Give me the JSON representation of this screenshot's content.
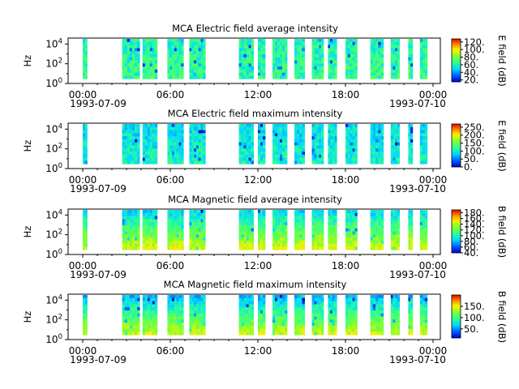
{
  "chart_data": [
    {
      "type": "heatmap",
      "title": "MCA  Electric field average intensity",
      "ylabel": "Hz",
      "y_scale": "log",
      "ylim": [
        1,
        40000
      ],
      "y_ticks": [
        {
          "base": "10",
          "exp": "0",
          "v": 1
        },
        {
          "base": "10",
          "exp": "2",
          "v": 100
        },
        {
          "base": "10",
          "exp": "4",
          "v": 10000
        }
      ],
      "x_ticks": [
        "00:00",
        "06:00",
        "12:00",
        "18:00",
        "00:00"
      ],
      "x_dates": [
        "1993-07-09",
        "1993-07-10"
      ],
      "xlim_hours": [
        -1,
        24.5
      ],
      "colorbar_label": "E field (dB)",
      "colorbar_ticks": [
        "120.",
        "100.",
        "80.",
        "60.",
        "40.",
        "20."
      ],
      "colorbar_range": [
        15,
        128
      ],
      "colorscale": "rainbow",
      "data_segments_hours": [
        [
          0.0,
          0.3
        ],
        [
          2.7,
          3.9
        ],
        [
          4.1,
          5.1
        ],
        [
          5.8,
          6.9
        ],
        [
          7.3,
          8.4
        ],
        [
          10.7,
          11.7
        ],
        [
          12.0,
          12.5
        ],
        [
          13.0,
          14.0
        ],
        [
          14.5,
          15.2
        ],
        [
          15.7,
          16.5
        ],
        [
          16.8,
          17.4
        ],
        [
          18.0,
          18.8
        ],
        [
          19.7,
          20.6
        ],
        [
          21.1,
          21.7
        ],
        [
          22.3,
          22.6
        ],
        [
          23.1,
          23.6
        ]
      ],
      "note_data": "time-frequency intensity spectrogram"
    },
    {
      "type": "heatmap",
      "title": "MCA  Electric field maximum intensity",
      "ylabel": "Hz",
      "y_scale": "log",
      "ylim": [
        1,
        40000
      ],
      "y_ticks": [
        {
          "base": "10",
          "exp": "0",
          "v": 1
        },
        {
          "base": "10",
          "exp": "2",
          "v": 100
        },
        {
          "base": "10",
          "exp": "4",
          "v": 10000
        }
      ],
      "x_ticks": [
        "00:00",
        "06:00",
        "12:00",
        "18:00",
        "00:00"
      ],
      "x_dates": [
        "1993-07-09",
        "1993-07-10"
      ],
      "xlim_hours": [
        -1,
        24.5
      ],
      "colorbar_label": "E field (dB)",
      "colorbar_ticks": [
        "250.",
        "200.",
        "150.",
        "100.",
        "50.",
        "0."
      ],
      "colorbar_range": [
        0,
        270
      ],
      "colorscale": "rainbow",
      "data_segments_hours": [
        [
          0.0,
          0.3
        ],
        [
          2.7,
          3.9
        ],
        [
          4.1,
          5.1
        ],
        [
          5.8,
          6.9
        ],
        [
          7.3,
          8.4
        ],
        [
          10.7,
          11.7
        ],
        [
          12.0,
          12.5
        ],
        [
          13.0,
          14.0
        ],
        [
          14.5,
          15.2
        ],
        [
          15.7,
          16.5
        ],
        [
          16.8,
          17.4
        ],
        [
          18.0,
          18.8
        ],
        [
          19.7,
          20.6
        ],
        [
          21.1,
          21.7
        ],
        [
          22.3,
          22.6
        ],
        [
          23.1,
          23.6
        ]
      ]
    },
    {
      "type": "heatmap",
      "title": "MCA  Magnetic field average intensity",
      "ylabel": "Hz",
      "y_scale": "log",
      "ylim": [
        1,
        40000
      ],
      "y_ticks": [
        {
          "base": "10",
          "exp": "0",
          "v": 1
        },
        {
          "base": "10",
          "exp": "2",
          "v": 100
        },
        {
          "base": "10",
          "exp": "4",
          "v": 10000
        }
      ],
      "x_ticks": [
        "00:00",
        "06:00",
        "12:00",
        "18:00",
        "00:00"
      ],
      "x_dates": [
        "1993-07-09",
        "1993-07-10"
      ],
      "xlim_hours": [
        -1,
        24.5
      ],
      "colorbar_label": "B field (dB)",
      "colorbar_ticks": [
        "180.",
        "160.",
        "140.",
        "120.",
        "100.",
        "80.",
        "60.",
        "40."
      ],
      "colorbar_range": [
        40,
        190
      ],
      "colorscale": "rainbow",
      "data_segments_hours": [
        [
          0.0,
          0.3
        ],
        [
          2.7,
          3.9
        ],
        [
          4.1,
          5.1
        ],
        [
          5.8,
          6.9
        ],
        [
          7.3,
          8.4
        ],
        [
          10.7,
          11.7
        ],
        [
          12.0,
          12.5
        ],
        [
          13.0,
          14.0
        ],
        [
          14.5,
          15.2
        ],
        [
          15.7,
          16.5
        ],
        [
          16.8,
          17.4
        ],
        [
          18.0,
          18.8
        ],
        [
          19.7,
          20.6
        ],
        [
          21.1,
          21.7
        ],
        [
          22.3,
          22.6
        ],
        [
          23.1,
          23.6
        ]
      ]
    },
    {
      "type": "heatmap",
      "title": "MCA  Magnetic field maximum intensity",
      "ylabel": "Hz",
      "y_scale": "log",
      "ylim": [
        1,
        40000
      ],
      "y_ticks": [
        {
          "base": "10",
          "exp": "0",
          "v": 1
        },
        {
          "base": "10",
          "exp": "2",
          "v": 100
        },
        {
          "base": "10",
          "exp": "4",
          "v": 10000
        }
      ],
      "x_ticks": [
        "00:00",
        "06:00",
        "12:00",
        "18:00",
        "00:00"
      ],
      "x_dates": [
        "1993-07-09",
        "1993-07-10"
      ],
      "xlim_hours": [
        -1,
        24.5
      ],
      "colorbar_label": "B field (dB)",
      "colorbar_ticks": [
        "150.",
        "100.",
        "50."
      ],
      "colorbar_range": [
        10,
        200
      ],
      "colorscale": "rainbow",
      "data_segments_hours": [
        [
          0.0,
          0.3
        ],
        [
          2.7,
          3.9
        ],
        [
          4.1,
          5.1
        ],
        [
          5.8,
          6.9
        ],
        [
          7.3,
          8.4
        ],
        [
          10.7,
          11.7
        ],
        [
          12.0,
          12.5
        ],
        [
          13.0,
          14.0
        ],
        [
          14.5,
          15.2
        ],
        [
          15.7,
          16.5
        ],
        [
          16.8,
          17.4
        ],
        [
          18.0,
          18.8
        ],
        [
          19.7,
          20.6
        ],
        [
          21.1,
          21.7
        ],
        [
          22.3,
          22.6
        ],
        [
          23.1,
          23.6
        ]
      ]
    }
  ]
}
